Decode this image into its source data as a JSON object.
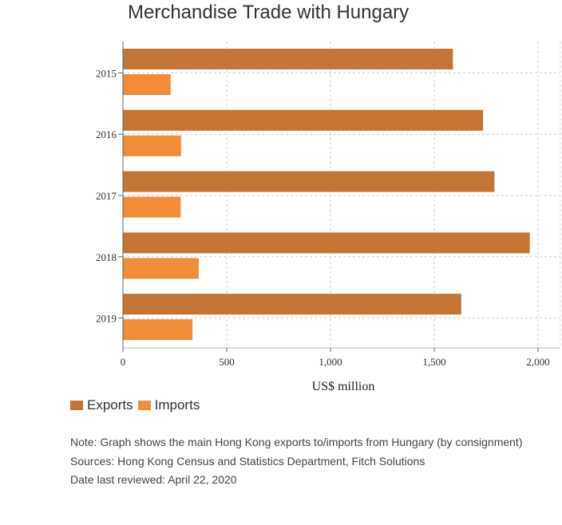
{
  "chart_data": {
    "type": "bar",
    "orientation": "horizontal",
    "title": "Merchandise Trade with Hungary",
    "xlabel": "US$ million",
    "ylabel": "",
    "categories": [
      "2015",
      "2016",
      "2017",
      "2018",
      "2019"
    ],
    "series": [
      {
        "name": "Exports",
        "color": "#c47534",
        "values": [
          1590,
          1735,
          1790,
          1960,
          1630
        ]
      },
      {
        "name": "Imports",
        "color": "#f28c36",
        "values": [
          230,
          280,
          278,
          365,
          335
        ]
      }
    ],
    "xlim": [
      0,
      2000
    ],
    "xticks": [
      0,
      500,
      1000,
      1500,
      2000
    ],
    "xtick_labels": [
      "0",
      "500",
      "1,000",
      "1,500",
      "2,000"
    ],
    "grid": true,
    "legend_position": "bottom-left"
  },
  "notes": {
    "note": "Note: Graph shows the main Hong Kong exports to/imports from Hungary (by consignment)",
    "sources": "Sources: Hong Kong Census and Statistics Department, Fitch Solutions",
    "reviewed": "Date last reviewed: April 22, 2020"
  }
}
